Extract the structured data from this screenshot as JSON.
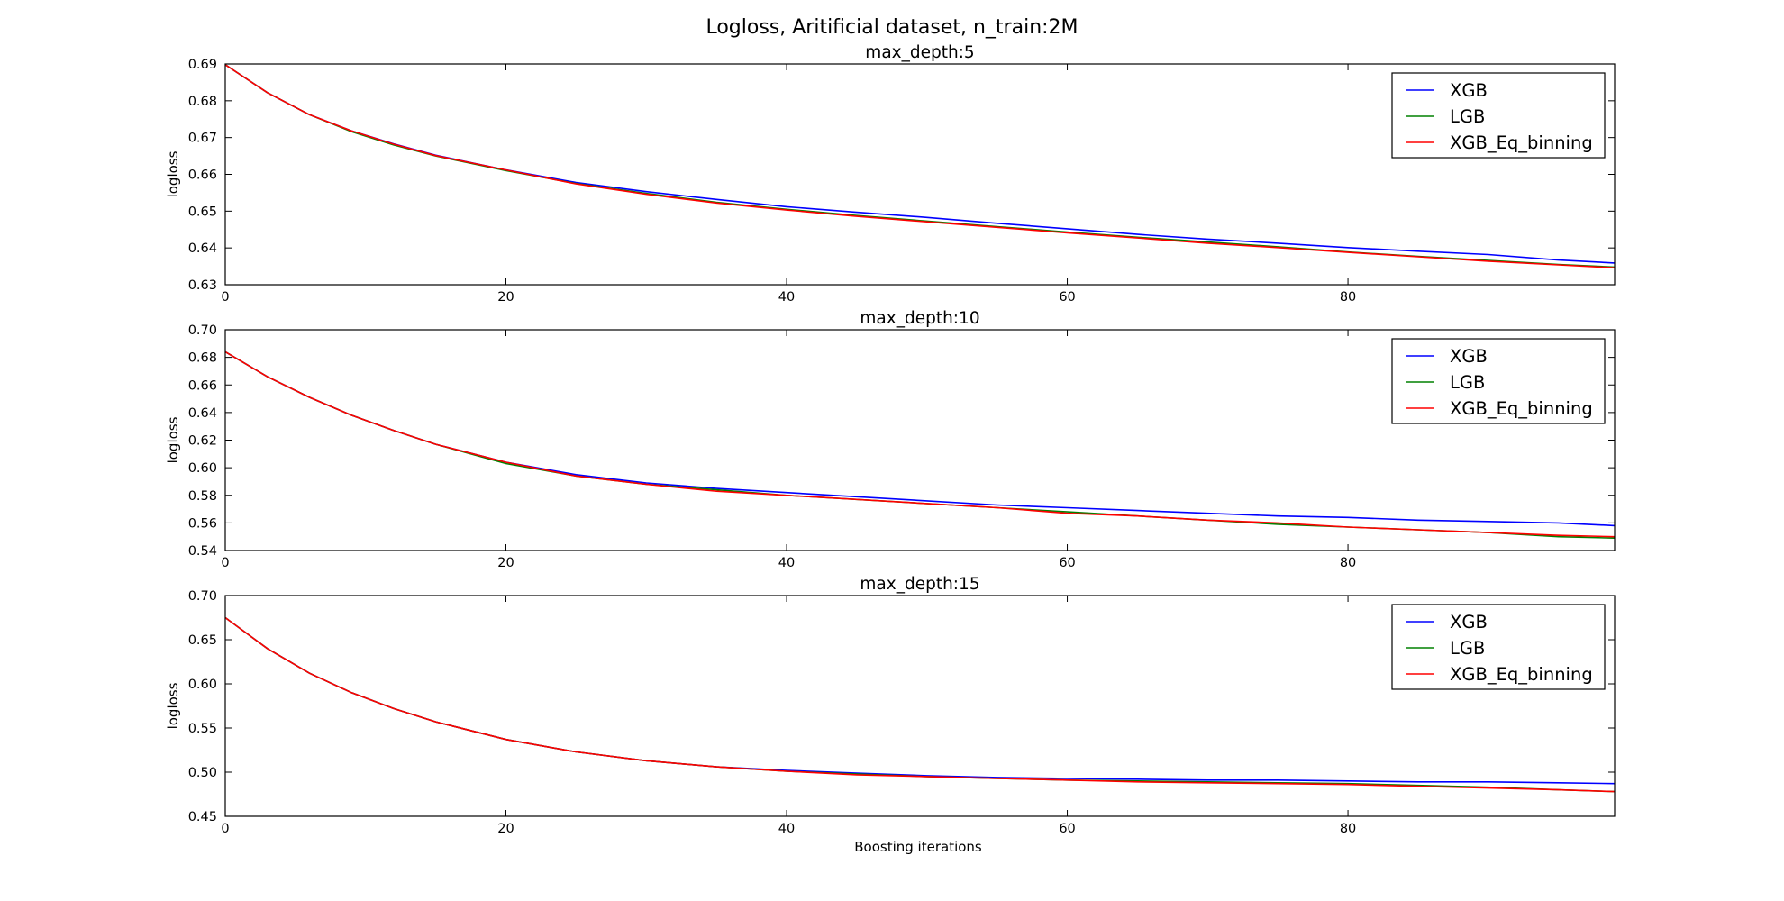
{
  "figure": {
    "suptitle": "Logloss, Aritificial dataset, n_train:2M",
    "xlabel": "Boosting iterations"
  },
  "chart_data": [
    {
      "type": "line",
      "title": "max_depth:5",
      "xlabel": "",
      "ylabel": "logloss",
      "xlim": [
        0,
        99
      ],
      "ylim": [
        0.63,
        0.69
      ],
      "xticks": [
        0,
        20,
        40,
        60,
        80
      ],
      "yticks": [
        0.63,
        0.64,
        0.65,
        0.66,
        0.67,
        0.68,
        0.69
      ],
      "ytick_labels": [
        "0.63",
        "0.64",
        "0.65",
        "0.66",
        "0.67",
        "0.68",
        "0.69"
      ],
      "grid": false,
      "legend_position": "top-right",
      "series": [
        {
          "name": "XGB",
          "color": "#0000ff",
          "points": [
            [
              0,
              0.6898
            ],
            [
              3,
              0.6822
            ],
            [
              6,
              0.6762
            ],
            [
              9,
              0.6718
            ],
            [
              12,
              0.6683
            ],
            [
              15,
              0.6652
            ],
            [
              20,
              0.6612
            ],
            [
              25,
              0.6578
            ],
            [
              30,
              0.6553
            ],
            [
              35,
              0.6532
            ],
            [
              40,
              0.6512
            ],
            [
              45,
              0.6497
            ],
            [
              50,
              0.6483
            ],
            [
              55,
              0.6467
            ],
            [
              60,
              0.6452
            ],
            [
              65,
              0.6437
            ],
            [
              70,
              0.6424
            ],
            [
              75,
              0.6413
            ],
            [
              80,
              0.6401
            ],
            [
              85,
              0.6391
            ],
            [
              90,
              0.6382
            ],
            [
              95,
              0.6367
            ],
            [
              99,
              0.6359
            ]
          ]
        },
        {
          "name": "LGB",
          "color": "#008000",
          "points": [
            [
              0,
              0.6898
            ],
            [
              3,
              0.6822
            ],
            [
              6,
              0.6762
            ],
            [
              9,
              0.6716
            ],
            [
              12,
              0.668
            ],
            [
              15,
              0.665
            ],
            [
              20,
              0.661
            ],
            [
              25,
              0.6575
            ],
            [
              30,
              0.6548
            ],
            [
              35,
              0.6524
            ],
            [
              40,
              0.6505
            ],
            [
              45,
              0.6488
            ],
            [
              50,
              0.6473
            ],
            [
              55,
              0.6458
            ],
            [
              60,
              0.6443
            ],
            [
              65,
              0.6429
            ],
            [
              70,
              0.6416
            ],
            [
              75,
              0.6403
            ],
            [
              80,
              0.6389
            ],
            [
              85,
              0.6377
            ],
            [
              90,
              0.6366
            ],
            [
              95,
              0.6355
            ],
            [
              99,
              0.6348
            ]
          ]
        },
        {
          "name": "XGB_Eq_binning",
          "color": "#ff0000",
          "points": [
            [
              0,
              0.6898
            ],
            [
              3,
              0.6822
            ],
            [
              6,
              0.6762
            ],
            [
              9,
              0.6718
            ],
            [
              12,
              0.6682
            ],
            [
              15,
              0.6651
            ],
            [
              20,
              0.6612
            ],
            [
              25,
              0.6574
            ],
            [
              30,
              0.6546
            ],
            [
              35,
              0.6522
            ],
            [
              40,
              0.6503
            ],
            [
              45,
              0.6486
            ],
            [
              50,
              0.6471
            ],
            [
              55,
              0.6456
            ],
            [
              60,
              0.6441
            ],
            [
              65,
              0.6427
            ],
            [
              70,
              0.6413
            ],
            [
              75,
              0.6401
            ],
            [
              80,
              0.6388
            ],
            [
              85,
              0.6376
            ],
            [
              90,
              0.6364
            ],
            [
              95,
              0.6354
            ],
            [
              99,
              0.6346
            ]
          ]
        }
      ]
    },
    {
      "type": "line",
      "title": "max_depth:10",
      "xlabel": "",
      "ylabel": "logloss",
      "xlim": [
        0,
        99
      ],
      "ylim": [
        0.54,
        0.7
      ],
      "xticks": [
        0,
        20,
        40,
        60,
        80
      ],
      "yticks": [
        0.54,
        0.56,
        0.58,
        0.6,
        0.62,
        0.64,
        0.66,
        0.68,
        0.7
      ],
      "ytick_labels": [
        "0.54",
        "0.56",
        "0.58",
        "0.60",
        "0.62",
        "0.64",
        "0.66",
        "0.68",
        "0.70"
      ],
      "grid": false,
      "legend_position": "top-right",
      "series": [
        {
          "name": "XGB",
          "color": "#0000ff",
          "points": [
            [
              0,
              0.684
            ],
            [
              3,
              0.666
            ],
            [
              6,
              0.651
            ],
            [
              9,
              0.638
            ],
            [
              12,
              0.627
            ],
            [
              15,
              0.617
            ],
            [
              20,
              0.604
            ],
            [
              25,
              0.595
            ],
            [
              30,
              0.589
            ],
            [
              35,
              0.585
            ],
            [
              40,
              0.582
            ],
            [
              45,
              0.579
            ],
            [
              50,
              0.576
            ],
            [
              55,
              0.573
            ],
            [
              60,
              0.571
            ],
            [
              65,
              0.569
            ],
            [
              70,
              0.567
            ],
            [
              75,
              0.565
            ],
            [
              80,
              0.564
            ],
            [
              85,
              0.562
            ],
            [
              90,
              0.561
            ],
            [
              95,
              0.56
            ],
            [
              99,
              0.558
            ]
          ]
        },
        {
          "name": "LGB",
          "color": "#008000",
          "points": [
            [
              0,
              0.684
            ],
            [
              3,
              0.666
            ],
            [
              6,
              0.651
            ],
            [
              9,
              0.638
            ],
            [
              12,
              0.627
            ],
            [
              15,
              0.617
            ],
            [
              20,
              0.603
            ],
            [
              25,
              0.594
            ],
            [
              30,
              0.588
            ],
            [
              35,
              0.584
            ],
            [
              40,
              0.58
            ],
            [
              45,
              0.577
            ],
            [
              50,
              0.574
            ],
            [
              55,
              0.571
            ],
            [
              60,
              0.568
            ],
            [
              65,
              0.565
            ],
            [
              70,
              0.562
            ],
            [
              75,
              0.559
            ],
            [
              80,
              0.557
            ],
            [
              85,
              0.555
            ],
            [
              90,
              0.553
            ],
            [
              95,
              0.55
            ],
            [
              99,
              0.549
            ]
          ]
        },
        {
          "name": "XGB_Eq_binning",
          "color": "#ff0000",
          "points": [
            [
              0,
              0.684
            ],
            [
              3,
              0.666
            ],
            [
              6,
              0.651
            ],
            [
              9,
              0.638
            ],
            [
              12,
              0.627
            ],
            [
              15,
              0.617
            ],
            [
              20,
              0.604
            ],
            [
              25,
              0.594
            ],
            [
              30,
              0.588
            ],
            [
              35,
              0.583
            ],
            [
              40,
              0.58
            ],
            [
              45,
              0.577
            ],
            [
              50,
              0.574
            ],
            [
              55,
              0.571
            ],
            [
              60,
              0.567
            ],
            [
              65,
              0.565
            ],
            [
              70,
              0.562
            ],
            [
              75,
              0.56
            ],
            [
              80,
              0.557
            ],
            [
              85,
              0.555
            ],
            [
              90,
              0.553
            ],
            [
              95,
              0.551
            ],
            [
              99,
              0.55
            ]
          ]
        }
      ]
    },
    {
      "type": "line",
      "title": "max_depth:15",
      "xlabel": "Boosting iterations",
      "ylabel": "logloss",
      "xlim": [
        0,
        99
      ],
      "ylim": [
        0.45,
        0.7
      ],
      "xticks": [
        0,
        20,
        40,
        60,
        80
      ],
      "yticks": [
        0.45,
        0.5,
        0.55,
        0.6,
        0.65,
        0.7
      ],
      "ytick_labels": [
        "0.45",
        "0.50",
        "0.55",
        "0.60",
        "0.65",
        "0.70"
      ],
      "grid": false,
      "legend_position": "top-right",
      "series": [
        {
          "name": "XGB",
          "color": "#0000ff",
          "points": [
            [
              0,
              0.675
            ],
            [
              3,
              0.64
            ],
            [
              6,
              0.612
            ],
            [
              9,
              0.59
            ],
            [
              12,
              0.572
            ],
            [
              15,
              0.557
            ],
            [
              20,
              0.537
            ],
            [
              25,
              0.523
            ],
            [
              30,
              0.513
            ],
            [
              35,
              0.506
            ],
            [
              40,
              0.502
            ],
            [
              45,
              0.499
            ],
            [
              50,
              0.496
            ],
            [
              55,
              0.494
            ],
            [
              60,
              0.493
            ],
            [
              65,
              0.492
            ],
            [
              70,
              0.491
            ],
            [
              75,
              0.491
            ],
            [
              80,
              0.49
            ],
            [
              85,
              0.489
            ],
            [
              90,
              0.489
            ],
            [
              95,
              0.488
            ],
            [
              99,
              0.487
            ]
          ]
        },
        {
          "name": "LGB",
          "color": "#008000",
          "points": [
            [
              0,
              0.675
            ],
            [
              3,
              0.64
            ],
            [
              6,
              0.612
            ],
            [
              9,
              0.59
            ],
            [
              12,
              0.572
            ],
            [
              15,
              0.557
            ],
            [
              20,
              0.537
            ],
            [
              25,
              0.523
            ],
            [
              30,
              0.513
            ],
            [
              35,
              0.506
            ],
            [
              40,
              0.501
            ],
            [
              45,
              0.498
            ],
            [
              50,
              0.495
            ],
            [
              55,
              0.493
            ],
            [
              60,
              0.491
            ],
            [
              65,
              0.49
            ],
            [
              70,
              0.489
            ],
            [
              75,
              0.488
            ],
            [
              80,
              0.487
            ],
            [
              85,
              0.485
            ],
            [
              90,
              0.483
            ],
            [
              95,
              0.48
            ],
            [
              99,
              0.478
            ]
          ]
        },
        {
          "name": "XGB_Eq_binning",
          "color": "#ff0000",
          "points": [
            [
              0,
              0.675
            ],
            [
              3,
              0.64
            ],
            [
              6,
              0.612
            ],
            [
              9,
              0.59
            ],
            [
              12,
              0.572
            ],
            [
              15,
              0.557
            ],
            [
              20,
              0.537
            ],
            [
              25,
              0.523
            ],
            [
              30,
              0.513
            ],
            [
              35,
              0.506
            ],
            [
              40,
              0.501
            ],
            [
              45,
              0.497
            ],
            [
              50,
              0.495
            ],
            [
              55,
              0.493
            ],
            [
              60,
              0.491
            ],
            [
              65,
              0.489
            ],
            [
              70,
              0.488
            ],
            [
              75,
              0.487
            ],
            [
              80,
              0.486
            ],
            [
              85,
              0.484
            ],
            [
              90,
              0.482
            ],
            [
              95,
              0.48
            ],
            [
              99,
              0.478
            ]
          ]
        }
      ]
    }
  ]
}
